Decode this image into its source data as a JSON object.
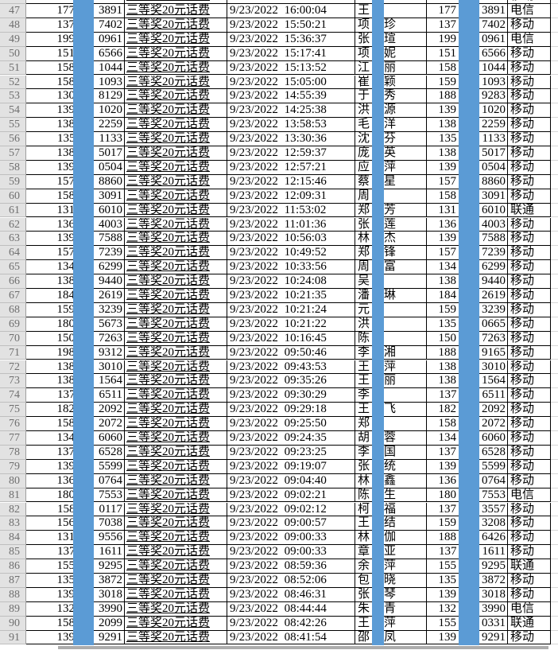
{
  "sheet": {
    "date": "9/23/2022",
    "prize_label": "三等奖20元话费",
    "carriers_seen": [
      "电信",
      "移动",
      "联通"
    ],
    "redaction": {
      "style": "solid vertical bars covering middle digits of phone numbers and middle character of names",
      "color": "#5B9BD5"
    },
    "colors": {
      "redaction_blue": "#5B9BD5",
      "grid_line": "#000000",
      "row_header_bg": "#E2E2E2",
      "row_header_text": "#6F6F6F",
      "faint_grid": "#D8D8D8",
      "scrollbar_gray": "#ACACAC"
    },
    "columns": [
      "row-number",
      "phone-1",
      "prize",
      "datetime",
      "name",
      "phone-2",
      "carrier"
    ],
    "rows": [
      {
        "n": "46",
        "p1a": "",
        "p1b": "7421",
        "t": "",
        "nf": "",
        "nl": "",
        "p2a": "",
        "p2b": "",
        "c": "移动"
      },
      {
        "n": "47",
        "p1a": "177",
        "p1b": "3891",
        "t": "16:00:04",
        "nf": "王",
        "nl": "",
        "p2a": "177",
        "p2b": "3891",
        "c": "电信"
      },
      {
        "n": "48",
        "p1a": "137",
        "p1b": "7402",
        "t": "15:50:21",
        "nf": "项",
        "nl": "珍",
        "p2a": "137",
        "p2b": "7402",
        "c": "移动"
      },
      {
        "n": "49",
        "p1a": "199",
        "p1b": "0961",
        "t": "15:36:37",
        "nf": "张",
        "nl": "瑄",
        "p2a": "199",
        "p2b": "0961",
        "c": "电信"
      },
      {
        "n": "50",
        "p1a": "151",
        "p1b": "6566",
        "t": "15:17:41",
        "nf": "项",
        "nl": "妮",
        "p2a": "151",
        "p2b": "6566",
        "c": "移动"
      },
      {
        "n": "51",
        "p1a": "158",
        "p1b": "1044",
        "t": "15:13:52",
        "nf": "江",
        "nl": "丽",
        "p2a": "158",
        "p2b": "1044",
        "c": "移动"
      },
      {
        "n": "52",
        "p1a": "158",
        "p1b": "1093",
        "t": "15:05:00",
        "nf": "崔",
        "nl": "颖",
        "p2a": "159",
        "p2b": "1093",
        "c": "移动"
      },
      {
        "n": "53",
        "p1a": "130",
        "p1b": "8129",
        "t": "14:55:39",
        "nf": "于",
        "nl": "秀",
        "p2a": "188",
        "p2b": "9283",
        "c": "移动"
      },
      {
        "n": "54",
        "p1a": "139",
        "p1b": "1020",
        "t": "14:25:38",
        "nf": "洪",
        "nl": "源",
        "p2a": "139",
        "p2b": "1020",
        "c": "移动"
      },
      {
        "n": "55",
        "p1a": "138",
        "p1b": "2259",
        "t": "13:58:53",
        "nf": "毛",
        "nl": "洋",
        "p2a": "138",
        "p2b": "2259",
        "c": "移动"
      },
      {
        "n": "56",
        "p1a": "135",
        "p1b": "1133",
        "t": "13:30:36",
        "nf": "沈",
        "nl": "芬",
        "p2a": "135",
        "p2b": "1133",
        "c": "移动"
      },
      {
        "n": "57",
        "p1a": "138",
        "p1b": "5017",
        "t": "12:59:37",
        "nf": "庞",
        "nl": "英",
        "p2a": "138",
        "p2b": "5017",
        "c": "移动"
      },
      {
        "n": "58",
        "p1a": "139",
        "p1b": "0504",
        "t": "12:57:21",
        "nf": "应",
        "nl": "萍",
        "p2a": "139",
        "p2b": "0504",
        "c": "移动"
      },
      {
        "n": "59",
        "p1a": "157",
        "p1b": "8860",
        "t": "12:15:46",
        "nf": "蔡",
        "nl": "星",
        "p2a": "157",
        "p2b": "8860",
        "c": "移动"
      },
      {
        "n": "60",
        "p1a": "158",
        "p1b": "3091",
        "t": "12:09:31",
        "nf": "周",
        "nl": "",
        "p2a": "158",
        "p2b": "3091",
        "c": "移动"
      },
      {
        "n": "61",
        "p1a": "131",
        "p1b": "6010",
        "t": "11:53:02",
        "nf": "郑",
        "nl": "芳",
        "p2a": "131",
        "p2b": "6010",
        "c": "联通"
      },
      {
        "n": "62",
        "p1a": "136",
        "p1b": "4003",
        "t": "11:01:36",
        "nf": "张",
        "nl": "莲",
        "p2a": "136",
        "p2b": "4003",
        "c": "移动"
      },
      {
        "n": "63",
        "p1a": "139",
        "p1b": "7588",
        "t": "10:56:03",
        "nf": "林",
        "nl": "杰",
        "p2a": "139",
        "p2b": "7588",
        "c": "移动"
      },
      {
        "n": "64",
        "p1a": "157",
        "p1b": "7239",
        "t": "10:49:52",
        "nf": "郑",
        "nl": "锋",
        "p2a": "157",
        "p2b": "7239",
        "c": "移动"
      },
      {
        "n": "65",
        "p1a": "134",
        "p1b": "6299",
        "t": "10:33:56",
        "nf": "周",
        "nl": "富",
        "p2a": "134",
        "p2b": "6299",
        "c": "移动"
      },
      {
        "n": "66",
        "p1a": "138",
        "p1b": "9440",
        "t": "10:24:08",
        "nf": "吴",
        "nl": "",
        "p2a": "138",
        "p2b": "9440",
        "c": "移动"
      },
      {
        "n": "67",
        "p1a": "184",
        "p1b": "2619",
        "t": "10:21:35",
        "nf": "潘",
        "nl": "琳",
        "p2a": "184",
        "p2b": "2619",
        "c": "移动"
      },
      {
        "n": "68",
        "p1a": "159",
        "p1b": "3239",
        "t": "10:21:24",
        "nf": "元",
        "nl": "",
        "p2a": "159",
        "p2b": "3239",
        "c": "移动"
      },
      {
        "n": "69",
        "p1a": "180",
        "p1b": "5673",
        "t": "10:21:22",
        "nf": "洪",
        "nl": "",
        "p2a": "135",
        "p2b": "0665",
        "c": "移动"
      },
      {
        "n": "70",
        "p1a": "150",
        "p1b": "7263",
        "t": "10:16:45",
        "nf": "陈",
        "nl": "",
        "p2a": "150",
        "p2b": "7263",
        "c": "移动"
      },
      {
        "n": "71",
        "p1a": "198",
        "p1b": "9312",
        "t": "09:50:46",
        "nf": "李",
        "nl": "湘",
        "p2a": "188",
        "p2b": "9165",
        "c": "移动"
      },
      {
        "n": "72",
        "p1a": "138",
        "p1b": "3010",
        "t": "09:43:53",
        "nf": "王",
        "nl": "萍",
        "p2a": "138",
        "p2b": "3010",
        "c": "移动"
      },
      {
        "n": "73",
        "p1a": "138",
        "p1b": "1564",
        "t": "09:35:26",
        "nf": "王",
        "nl": "丽",
        "p2a": "138",
        "p2b": "1564",
        "c": "移动"
      },
      {
        "n": "74",
        "p1a": "137",
        "p1b": "6511",
        "t": "09:30:29",
        "nf": "李",
        "nl": "",
        "p2a": "137",
        "p2b": "6511",
        "c": "移动"
      },
      {
        "n": "75",
        "p1a": "182",
        "p1b": "2092",
        "t": "09:29:18",
        "nf": "王",
        "nl": "飞",
        "p2a": "182",
        "p2b": "2092",
        "c": "移动"
      },
      {
        "n": "76",
        "p1a": "158",
        "p1b": "2072",
        "t": "09:25:50",
        "nf": "郑",
        "nl": "",
        "p2a": "158",
        "p2b": "2072",
        "c": "移动"
      },
      {
        "n": "77",
        "p1a": "134",
        "p1b": "6060",
        "t": "09:24:35",
        "nf": "胡",
        "nl": "蓉",
        "p2a": "134",
        "p2b": "6060",
        "c": "移动"
      },
      {
        "n": "78",
        "p1a": "137",
        "p1b": "6528",
        "t": "09:23:25",
        "nf": "李",
        "nl": "国",
        "p2a": "137",
        "p2b": "6528",
        "c": "移动"
      },
      {
        "n": "79",
        "p1a": "139",
        "p1b": "5599",
        "t": "09:19:07",
        "nf": "张",
        "nl": "统",
        "p2a": "139",
        "p2b": "5599",
        "c": "移动"
      },
      {
        "n": "80",
        "p1a": "136",
        "p1b": "0764",
        "t": "09:04:40",
        "nf": "林",
        "nl": "鑫",
        "p2a": "136",
        "p2b": "0764",
        "c": "移动"
      },
      {
        "n": "81",
        "p1a": "180",
        "p1b": "7553",
        "t": "09:02:21",
        "nf": "陈",
        "nl": "生",
        "p2a": "180",
        "p2b": "7553",
        "c": "电信"
      },
      {
        "n": "82",
        "p1a": "158",
        "p1b": "0117",
        "t": "09:02:12",
        "nf": "柯",
        "nl": "福",
        "p2a": "137",
        "p2b": "3557",
        "c": "移动"
      },
      {
        "n": "83",
        "p1a": "156",
        "p1b": "7038",
        "t": "09:00:57",
        "nf": "王",
        "nl": "结",
        "p2a": "159",
        "p2b": "3208",
        "c": "移动"
      },
      {
        "n": "84",
        "p1a": "131",
        "p1b": "9556",
        "t": "09:00:33",
        "nf": "林",
        "nl": "伽",
        "p2a": "188",
        "p2b": "6426",
        "c": "移动"
      },
      {
        "n": "85",
        "p1a": "137",
        "p1b": "1611",
        "t": "09:00:33",
        "nf": "章",
        "nl": "亚",
        "p2a": "137",
        "p2b": "1611",
        "c": "移动"
      },
      {
        "n": "86",
        "p1a": "155",
        "p1b": "9295",
        "t": "08:59:36",
        "nf": "余",
        "nl": "萍",
        "p2a": "155",
        "p2b": "9295",
        "c": "联通"
      },
      {
        "n": "87",
        "p1a": "135",
        "p1b": "3872",
        "t": "08:52:06",
        "nf": "包",
        "nl": "晓",
        "p2a": "135",
        "p2b": "3872",
        "c": "移动"
      },
      {
        "n": "88",
        "p1a": "139",
        "p1b": "3018",
        "t": "08:46:31",
        "nf": "张",
        "nl": "琴",
        "p2a": "139",
        "p2b": "3018",
        "c": "移动"
      },
      {
        "n": "89",
        "p1a": "132",
        "p1b": "3990",
        "t": "08:44:44",
        "nf": "朱",
        "nl": "青",
        "p2a": "132",
        "p2b": "3990",
        "c": "电信"
      },
      {
        "n": "90",
        "p1a": "158",
        "p1b": "2099",
        "t": "08:42:26",
        "nf": "王",
        "nl": "萍",
        "p2a": "155",
        "p2b": "0331",
        "c": "联通"
      },
      {
        "n": "91",
        "p1a": "139",
        "p1b": "9291",
        "t": "08:41:54",
        "nf": "邵",
        "nl": "凤",
        "p2a": "139",
        "p2b": "9291",
        "c": "移动"
      }
    ]
  }
}
